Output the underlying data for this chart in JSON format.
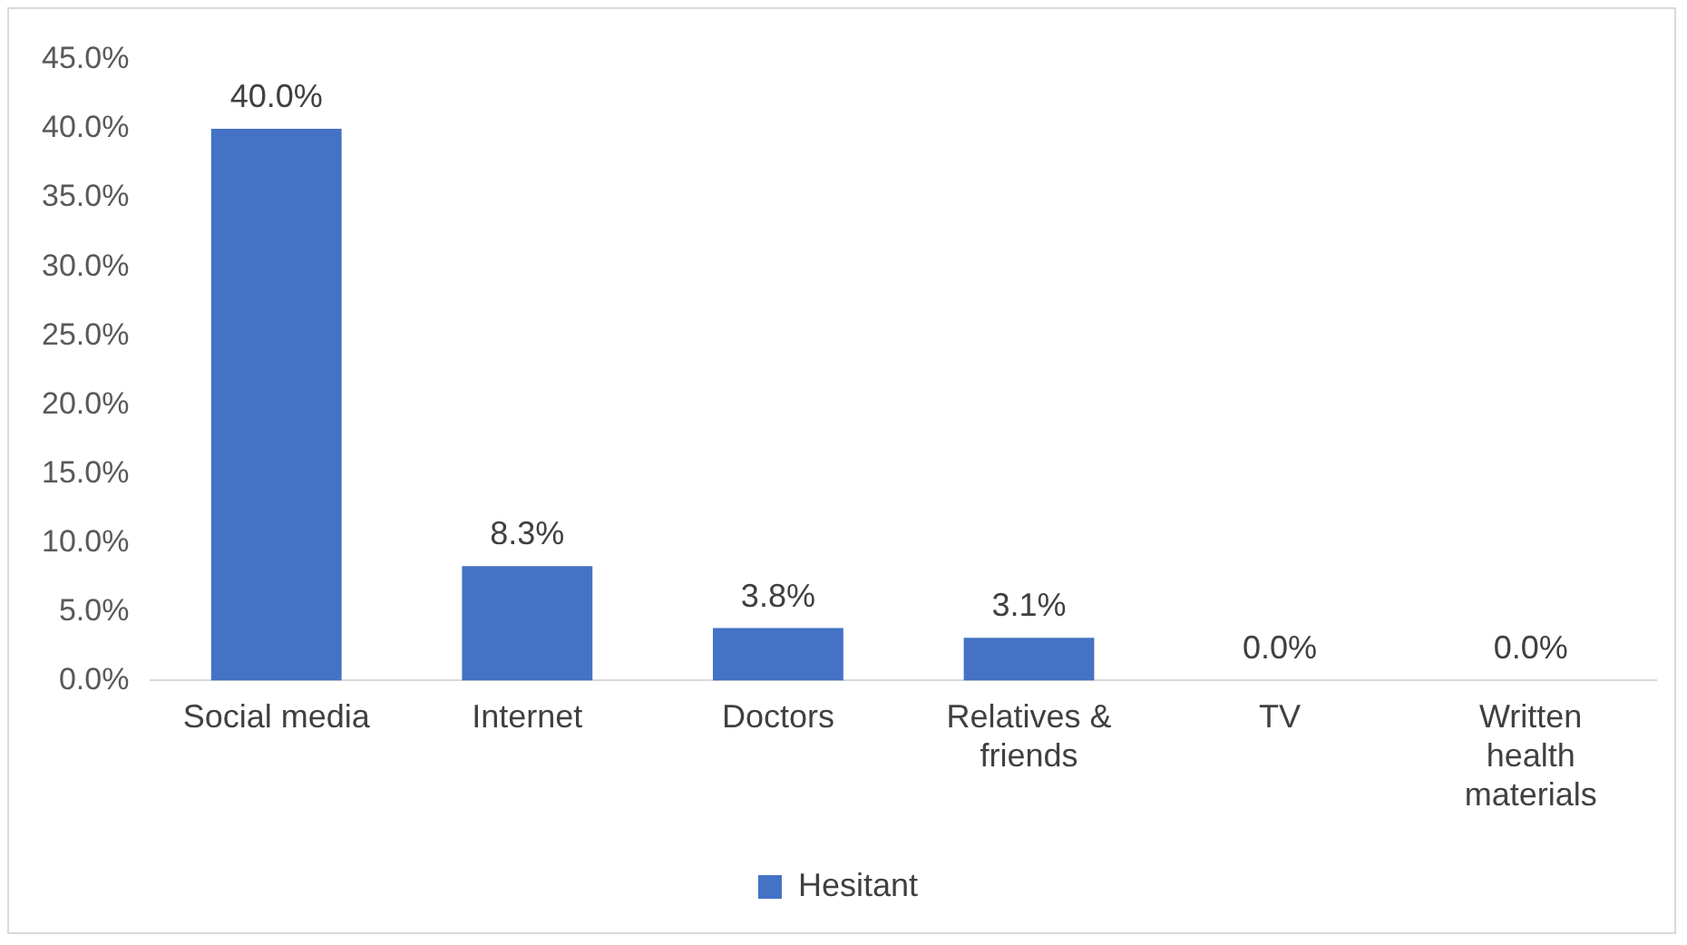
{
  "chart_data": {
    "type": "bar",
    "categories": [
      "Social media",
      "Internet",
      "Doctors",
      "Relatives & friends",
      "TV",
      "Written health materials"
    ],
    "series": [
      {
        "name": "Hesitant",
        "color": "#4472c4",
        "values": [
          40.0,
          8.3,
          3.8,
          3.1,
          0.0,
          0.0
        ],
        "value_labels": [
          "40.0%",
          "8.3%",
          "3.8%",
          "3.1%",
          "0.0%",
          "0.0%"
        ]
      }
    ],
    "ylim": [
      0,
      45
    ],
    "yticks": [
      {
        "value": 0,
        "label": "0.0%"
      },
      {
        "value": 5,
        "label": "5.0%"
      },
      {
        "value": 10,
        "label": "10.0%"
      },
      {
        "value": 15,
        "label": "15.0%"
      },
      {
        "value": 20,
        "label": "20.0%"
      },
      {
        "value": 25,
        "label": "25.0%"
      },
      {
        "value": 30,
        "label": "30.0%"
      },
      {
        "value": 35,
        "label": "35.0%"
      },
      {
        "value": 40,
        "label": "40.0%"
      },
      {
        "value": 45,
        "label": "45.0%"
      }
    ],
    "grid": false,
    "legend": "bottom"
  }
}
